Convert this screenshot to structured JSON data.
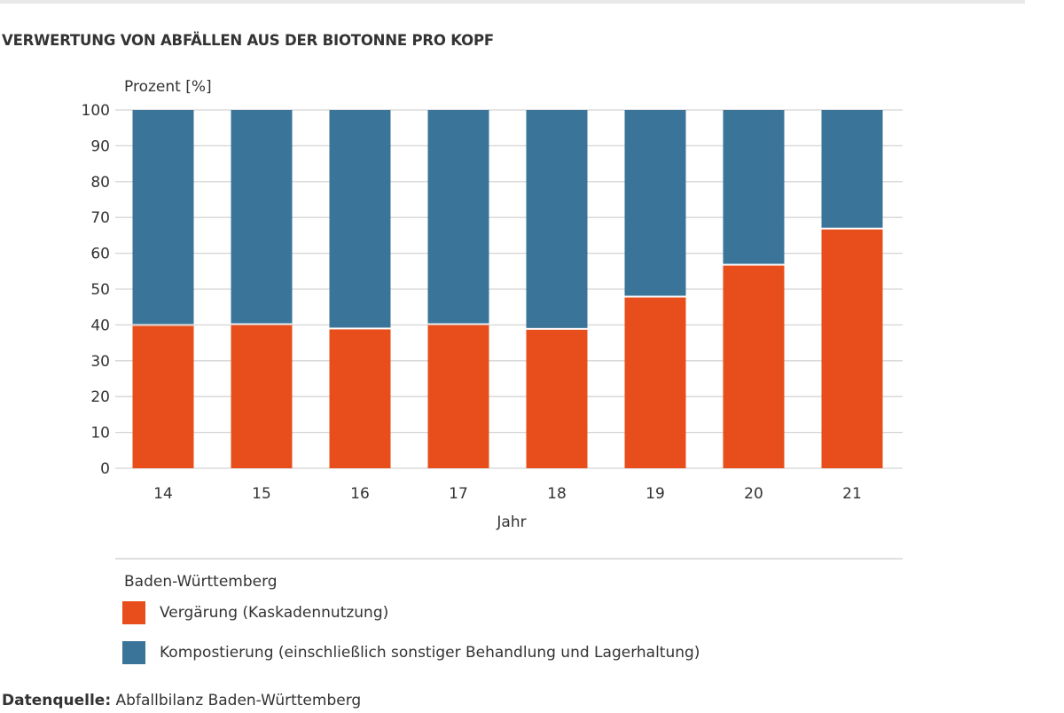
{
  "title": "VERWERTUNG VON ABFÄLLEN AUS DER BIOTONNE PRO KOPF",
  "chart_data": {
    "type": "bar",
    "stacked": true,
    "title": "VERWERTUNG VON ABFÄLLEN AUS DER BIOTONNE PRO KOPF",
    "xlabel": "Jahr",
    "ylabel": "Prozent [%]",
    "ylim": [
      0,
      100
    ],
    "yticks": [
      0,
      10,
      20,
      30,
      40,
      50,
      60,
      70,
      80,
      90,
      100
    ],
    "grid": true,
    "categories": [
      "14",
      "15",
      "16",
      "17",
      "18",
      "19",
      "20",
      "21"
    ],
    "legend_title": "Baden-Württemberg",
    "legend_position": "bottom",
    "series": [
      {
        "name": "Vergärung (Kaskadennutzung)",
        "color": "#e84e1b",
        "values": [
          40.0,
          40.2,
          39.0,
          40.2,
          38.9,
          47.9,
          56.8,
          66.9
        ]
      },
      {
        "name": "Kompostierung (einschließlich sonstiger Behandlung und Lagerhaltung)",
        "color": "#3a7499",
        "values": [
          60.0,
          59.8,
          61.0,
          59.8,
          61.1,
          52.1,
          43.2,
          33.1
        ]
      }
    ]
  },
  "source": {
    "label": "Datenquelle:",
    "text": "Abfallbilanz Baden-Württemberg"
  }
}
